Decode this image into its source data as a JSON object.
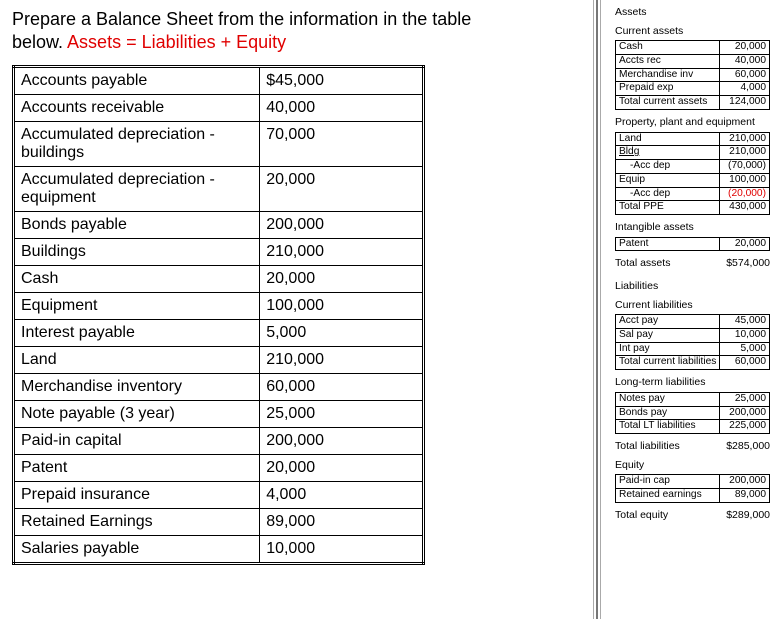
{
  "instruction": {
    "line1": "Prepare a Balance Sheet from the information in the table",
    "line2a": "below. ",
    "line2b": "Assets = Liabilities + Equity"
  },
  "accounts": {
    "rows": [
      {
        "label": "Accounts payable",
        "value": "$45,000"
      },
      {
        "label": "Accounts receivable",
        "value": "40,000"
      },
      {
        "label": "Accumulated depreciation - buildings",
        "value": "70,000"
      },
      {
        "label": "Accumulated depreciation - equipment",
        "value": "20,000"
      },
      {
        "label": "Bonds payable",
        "value": "200,000"
      },
      {
        "label": "Buildings",
        "value": "210,000"
      },
      {
        "label": "Cash",
        "value": "20,000"
      },
      {
        "label": "Equipment",
        "value": "100,000"
      },
      {
        "label": "Interest payable",
        "value": "5,000"
      },
      {
        "label": "Land",
        "value": "210,000"
      },
      {
        "label": "Merchandise inventory",
        "value": "60,000"
      },
      {
        "label": "Note payable (3 year)",
        "value": "25,000"
      },
      {
        "label": "Paid-in capital",
        "value": "200,000"
      },
      {
        "label": "Patent",
        "value": "20,000"
      },
      {
        "label": "Prepaid insurance",
        "value": "4,000"
      },
      {
        "label": "Retained Earnings",
        "value": "89,000"
      },
      {
        "label": "Salaries payable",
        "value": "10,000"
      }
    ]
  },
  "bs": {
    "assets_h": "Assets",
    "ca_h": "Current assets",
    "ca": [
      {
        "l": "Cash",
        "v": "20,000"
      },
      {
        "l": "Accts rec",
        "v": "40,000"
      },
      {
        "l": "Merchandise inv",
        "v": "60,000"
      },
      {
        "l": "Prepaid exp",
        "v": "4,000"
      },
      {
        "l": "Total current assets",
        "v": "124,000"
      }
    ],
    "ppe_h": "Property, plant and equipment",
    "ppe": [
      {
        "l": "Land",
        "v": "210,000"
      },
      {
        "l": "Bldg",
        "v": "210,000",
        "bldg": true
      },
      {
        "l": "-Acc dep",
        "v": "(70,000)",
        "indent": true
      },
      {
        "l": "Equip",
        "v": "100,000"
      },
      {
        "l": "-Acc dep",
        "v": "(20,000)",
        "indent": true,
        "red": true
      },
      {
        "l": "Total PPE",
        "v": "430,000"
      }
    ],
    "int_h": "Intangible assets",
    "int": [
      {
        "l": "Patent",
        "v": "20,000"
      }
    ],
    "ta": {
      "l": "Total assets",
      "v": "$574,000"
    },
    "liab_h": "Liabilities",
    "cl_h": "Current liabilities",
    "cl": [
      {
        "l": "Acct pay",
        "v": "45,000"
      },
      {
        "l": "Sal pay",
        "v": "10,000"
      },
      {
        "l": "Int pay",
        "v": "5,000"
      },
      {
        "l": "Total current liabilities",
        "v": "60,000"
      }
    ],
    "lt_h": "Long-term liabilities",
    "lt": [
      {
        "l": "Notes pay",
        "v": "25,000"
      },
      {
        "l": "Bonds pay",
        "v": "200,000"
      },
      {
        "l": "Total LT liabilities",
        "v": "225,000"
      }
    ],
    "tl": {
      "l": "Total liabilities",
      "v": "$285,000"
    },
    "eq_h": "Equity",
    "eq": [
      {
        "l": "Paid-in cap",
        "v": "200,000"
      },
      {
        "l": "Retained earnings",
        "v": "89,000"
      }
    ],
    "te": {
      "l": "Total equity",
      "v": "$289,000"
    }
  }
}
